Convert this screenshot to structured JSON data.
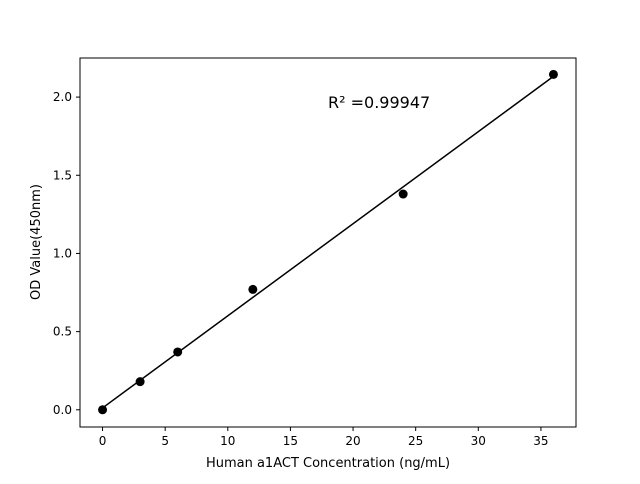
{
  "chart_data": {
    "type": "scatter",
    "title": "",
    "xlabel": "Human a1ACT Concentration (ng/mL)",
    "ylabel": "OD Value(450nm)",
    "xlim": [
      -1.8,
      37.8
    ],
    "ylim": [
      -0.11,
      2.25
    ],
    "xticks": [
      0,
      5,
      10,
      15,
      20,
      25,
      30,
      35
    ],
    "yticks": [
      0.0,
      0.5,
      1.0,
      1.5,
      2.0
    ],
    "xtick_labels": [
      "0",
      "5",
      "10",
      "15",
      "20",
      "25",
      "30",
      "35"
    ],
    "ytick_labels": [
      "0.0",
      "0.5",
      "1.0",
      "1.5",
      "2.0"
    ],
    "grid": false,
    "points": {
      "x": [
        0,
        3,
        6,
        12,
        24,
        36
      ],
      "y": [
        0.0,
        0.18,
        0.37,
        0.77,
        1.38,
        2.145
      ],
      "color": "#000000"
    },
    "fit_line": {
      "slope": 0.0589,
      "intercept": 0.012,
      "x_range": [
        0,
        36
      ],
      "color": "#000000"
    },
    "annotation": {
      "text": "R² =0.99947",
      "x": 18,
      "y": 1.93
    }
  }
}
